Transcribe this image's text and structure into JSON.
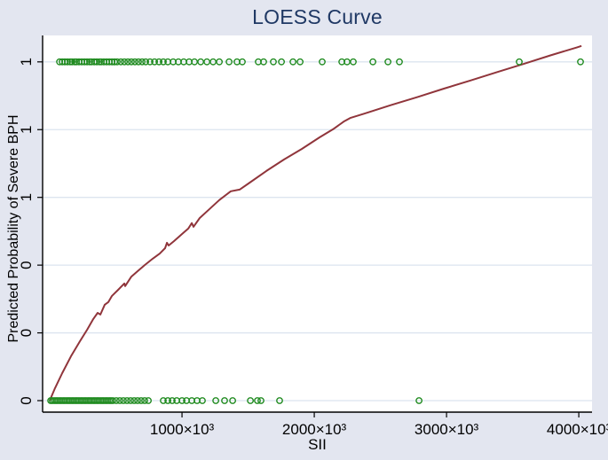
{
  "figure": {
    "background_color": "#e3e6f0",
    "plot_background_color": "#ffffff",
    "gridline_color": "#dce4ef",
    "axis_color": "#000000"
  },
  "chart_data": {
    "type": "scatter",
    "title": "LOESS Curve",
    "title_color": "#1f3864",
    "xlabel": "SII",
    "ylabel": "Predicted Probability of Severe BPH",
    "x_unit": "×10³",
    "xlim": [
      -54,
      4100
    ],
    "ylim": [
      -0.034,
      1.078
    ],
    "grid": true,
    "legend": "none",
    "x_ticks": [
      {
        "value": 1000,
        "label": "1000×10³"
      },
      {
        "value": 2000,
        "label": "2000×10³"
      },
      {
        "value": 3000,
        "label": "3000×10³"
      },
      {
        "value": 4000,
        "label": "4000×10³"
      }
    ],
    "y_ticks": [
      {
        "value": 0,
        "label": "0"
      },
      {
        "value": 0.2,
        "label": "0"
      },
      {
        "value": 0.4,
        "label": "0"
      },
      {
        "value": 0.6,
        "label": "1"
      },
      {
        "value": 0.8,
        "label": "1"
      },
      {
        "value": 1,
        "label": "1"
      }
    ],
    "series": [
      {
        "name": "observed-severe-bph",
        "type": "scatter",
        "marker": "hollow-circle",
        "color": "#208b20",
        "y": 1,
        "x": [
          74,
          94,
          114,
          134,
          154,
          168,
          188,
          201,
          221,
          242,
          262,
          282,
          302,
          315,
          336,
          356,
          376,
          389,
          409,
          430,
          450,
          470,
          490,
          510,
          537,
          564,
          591,
          617,
          644,
          671,
          698,
          725,
          758,
          792,
          826,
          859,
          893,
          933,
          973,
          1013,
          1054,
          1094,
          1141,
          1188,
          1235,
          1282,
          1356,
          1416,
          1456,
          1577,
          1617,
          1691,
          1752,
          1839,
          1893,
          2060,
          2208,
          2248,
          2295,
          2443,
          2557,
          2644,
          3550,
          4013
        ]
      },
      {
        "name": "observed-non-severe-bph",
        "type": "scatter",
        "marker": "hollow-circle",
        "color": "#208b20",
        "y": 0,
        "x": [
          7,
          20,
          34,
          47,
          60,
          74,
          87,
          101,
          114,
          128,
          141,
          154,
          168,
          181,
          195,
          208,
          221,
          235,
          248,
          262,
          275,
          289,
          302,
          315,
          329,
          342,
          356,
          369,
          383,
          396,
          409,
          423,
          436,
          450,
          463,
          477,
          503,
          530,
          557,
          584,
          611,
          638,
          664,
          691,
          718,
          745,
          859,
          893,
          926,
          960,
          1000,
          1034,
          1074,
          1114,
          1154,
          1255,
          1322,
          1383,
          1517,
          1570,
          1597,
          1738,
          2792
        ]
      },
      {
        "name": "loess-curve",
        "type": "line",
        "color": "#90353b",
        "width": 2,
        "points": [
          [
            0,
            0
          ],
          [
            40,
            0.037
          ],
          [
            94,
            0.081
          ],
          [
            161,
            0.131
          ],
          [
            228,
            0.175
          ],
          [
            282,
            0.209
          ],
          [
            329,
            0.241
          ],
          [
            362,
            0.259
          ],
          [
            383,
            0.254
          ],
          [
            416,
            0.283
          ],
          [
            443,
            0.291
          ],
          [
            470,
            0.309
          ],
          [
            517,
            0.327
          ],
          [
            564,
            0.346
          ],
          [
            570,
            0.338
          ],
          [
            617,
            0.366
          ],
          [
            664,
            0.382
          ],
          [
            718,
            0.4
          ],
          [
            778,
            0.419
          ],
          [
            832,
            0.434
          ],
          [
            872,
            0.45
          ],
          [
            886,
            0.466
          ],
          [
            899,
            0.458
          ],
          [
            940,
            0.471
          ],
          [
            1000,
            0.492
          ],
          [
            1047,
            0.508
          ],
          [
            1074,
            0.524
          ],
          [
            1087,
            0.513
          ],
          [
            1134,
            0.539
          ],
          [
            1201,
            0.563
          ],
          [
            1282,
            0.592
          ],
          [
            1369,
            0.618
          ],
          [
            1436,
            0.623
          ],
          [
            1503,
            0.641
          ],
          [
            1638,
            0.678
          ],
          [
            1772,
            0.712
          ],
          [
            1906,
            0.743
          ],
          [
            2040,
            0.777
          ],
          [
            2141,
            0.801
          ],
          [
            2228,
            0.825
          ],
          [
            2275,
            0.835
          ],
          [
            2376,
            0.847
          ],
          [
            2577,
            0.872
          ],
          [
            2779,
            0.896
          ],
          [
            2980,
            0.921
          ],
          [
            3181,
            0.945
          ],
          [
            3383,
            0.97
          ],
          [
            3584,
            0.994
          ],
          [
            3785,
            1.019
          ],
          [
            3987,
            1.043
          ],
          [
            4020,
            1.047
          ]
        ]
      }
    ]
  }
}
